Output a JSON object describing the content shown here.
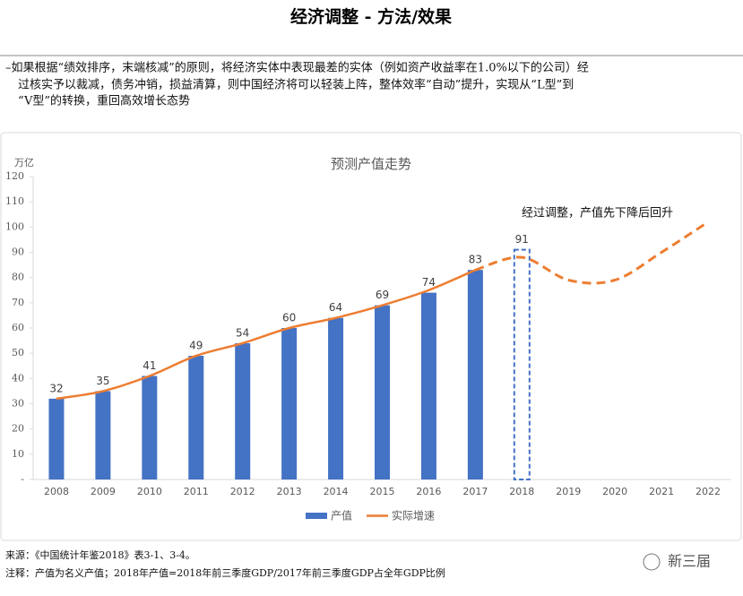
{
  "header": {
    "title": "经济调整 - 方法/效果"
  },
  "bullet": [
    "–如果根据“绩效排序，末端核减”的原则，将经济实体中表现最差的实体（例如资产收益率在1.0%以下的公司）经",
    "过核实予以裁减，债务冲销，损益清算，则中国经济将可以轻装上阵，整体效率“自动”提升，实现从“L型”到",
    "“V型”的转换，重回高效增长态势"
  ],
  "chart_data": {
    "type": "bar",
    "title": "预测产值走势",
    "y_label": "万亿",
    "annotation": "经过调整，产值先下降后回升",
    "categories": [
      "2008",
      "2009",
      "2010",
      "2011",
      "2012",
      "2013",
      "2014",
      "2015",
      "2016",
      "2017",
      "2018",
      "2019",
      "2020",
      "2021",
      "2022"
    ],
    "series": [
      {
        "name": "产值",
        "color": "#4472c4",
        "values": [
          32,
          35,
          41,
          49,
          54,
          60,
          64,
          69,
          74,
          83,
          91,
          null,
          null,
          null,
          null
        ]
      },
      {
        "name": "实际增速",
        "color": "#ed7d31",
        "type": "line",
        "values": [
          32,
          35,
          41,
          49,
          54,
          60,
          64,
          69,
          75,
          83,
          88,
          79,
          79,
          90,
          102
        ]
      }
    ],
    "ylim": [
      0,
      120
    ],
    "yticks": [
      {
        "value": 0,
        "label": "-"
      },
      10,
      20,
      30,
      40,
      50,
      60,
      70,
      80,
      90,
      100,
      110,
      120
    ],
    "grid": false
  },
  "source": "来源：《中国统计年鉴2018》表3-1、3-4。",
  "note": "注释：产值为名义产值；2018年产值=2018年前三季度GDP/2017年前三季度GDP占全年GDP比例",
  "watermark": "新三届"
}
